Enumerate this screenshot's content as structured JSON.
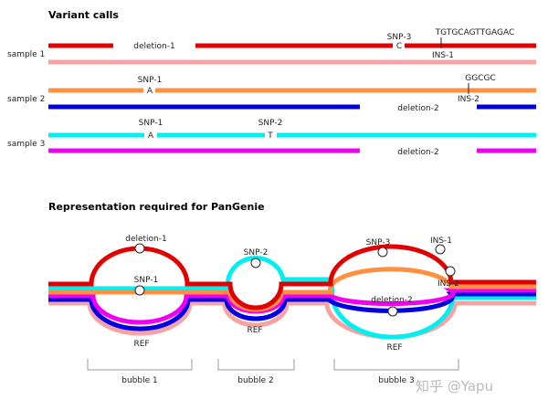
{
  "variant_calls": {
    "title": "Variant calls",
    "samples": [
      {
        "label": "sample 1"
      },
      {
        "label": "sample 2"
      },
      {
        "label": "sample 3"
      }
    ],
    "labels": {
      "deletion_1": "deletion-1",
      "snp_3": "SNP-3",
      "snp_3_allele": "C",
      "ins_1_seq": "TGTGCAGTTGAGAC",
      "ins_1": "INS-1",
      "snp_1_s2": "SNP-1",
      "snp_1_s2_allele": "A",
      "ins_2_seq": "GGCGC",
      "ins_2": "INS-2",
      "deletion_2_s2": "deletion-2",
      "snp_1_s3": "SNP-1",
      "snp_1_s3_allele": "A",
      "snp_2": "SNP-2",
      "snp_2_allele": "T",
      "deletion_2_s3": "deletion-2"
    }
  },
  "pangenie": {
    "title": "Representation required for PanGenie",
    "labels": {
      "deletion_1": "deletion-1",
      "snp_1": "SNP-1",
      "snp_2": "SNP-2",
      "snp_3": "SNP-3",
      "ins_1": "INS-1",
      "ins_2": "INS-2",
      "deletion_2": "deletion-2",
      "ref_1": "REF",
      "ref_2": "REF",
      "ref_3": "REF"
    },
    "bubbles": [
      "bubble 1",
      "bubble 2",
      "bubble 3"
    ]
  },
  "watermark": "知乎 @Yapu",
  "colors": {
    "sample1_hap1": "#e00000",
    "sample1_hap2": "#f5a3a3",
    "sample2_hap1": "#ff9040",
    "sample2_hap2": "#0000e0",
    "sample3_hap1": "#00f0f0",
    "sample3_hap2": "#f000f0"
  }
}
